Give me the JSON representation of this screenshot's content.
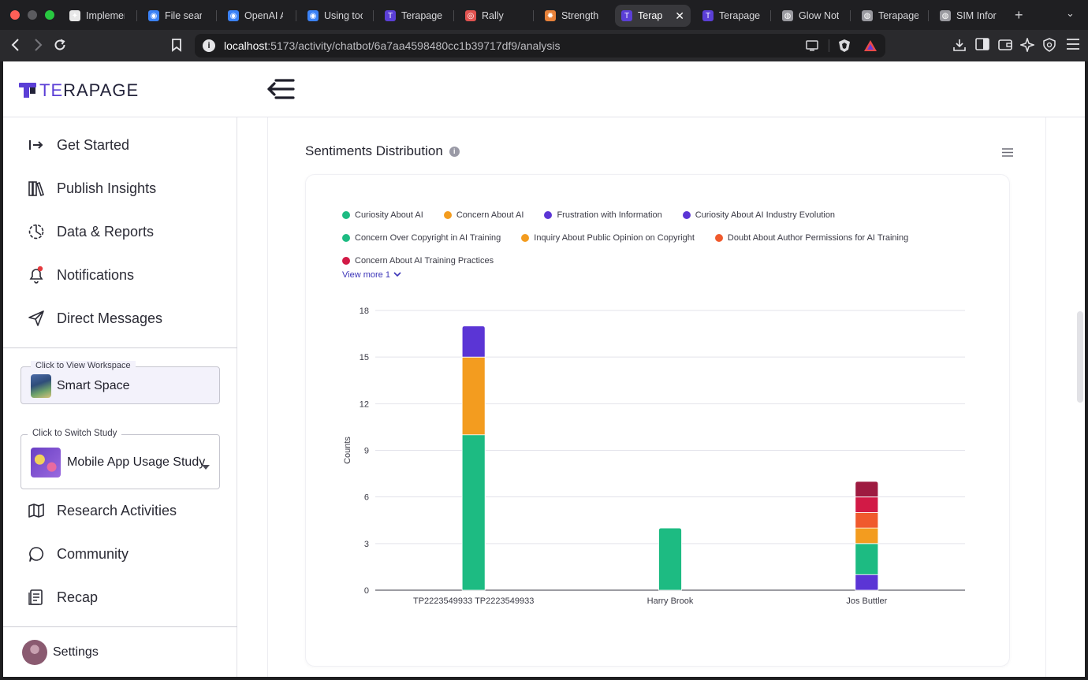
{
  "browser": {
    "tabs": [
      {
        "label": "Implemen",
        "left": 80,
        "width": 86,
        "fav_color": "#e8e8e8",
        "fav_glyph": "✦"
      },
      {
        "label": "File searc",
        "left": 180,
        "width": 84,
        "fav_color": "#3b82f6",
        "fav_glyph": "◉"
      },
      {
        "label": "OpenAI A",
        "left": 281,
        "width": 86,
        "fav_color": "#3b82f6",
        "fav_glyph": "◉"
      },
      {
        "label": "Using too",
        "left": 382,
        "width": 86,
        "fav_color": "#3b82f6",
        "fav_glyph": "◉"
      },
      {
        "label": "Terapage",
        "left": 480,
        "width": 90,
        "fav_color": "#5b3fd6",
        "fav_glyph": "T"
      },
      {
        "label": "Rally",
        "left": 582,
        "width": 88,
        "fav_color": "#e0524f",
        "fav_glyph": "◎"
      },
      {
        "label": "Strength",
        "left": 683,
        "width": 86,
        "fav_color": "#e8823a",
        "fav_glyph": "✹"
      },
      {
        "label": "Terap",
        "left": 780,
        "width": 96,
        "fav_color": "#5b3fd6",
        "fav_glyph": "T",
        "active": true
      },
      {
        "label": "Terapage",
        "left": 883,
        "width": 90,
        "fav_color": "#5b3fd6",
        "fav_glyph": "T"
      },
      {
        "label": "Glow Not",
        "left": 984,
        "width": 88,
        "fav_color": "#9a9aa0",
        "fav_glyph": "◍"
      },
      {
        "label": "Terapage",
        "left": 1085,
        "width": 88,
        "fav_color": "#9a9aa0",
        "fav_glyph": "◍"
      },
      {
        "label": "SIM Inforr",
        "left": 1184,
        "width": 88,
        "fav_color": "#9a9aa0",
        "fav_glyph": "◍"
      }
    ],
    "url_host": "localhost",
    "url_path": ":5173/activity/chatbot/6a7aa4598480cc1b39717df9/analysis"
  },
  "app": {
    "logo_te": "TE",
    "logo_rest": "RAPAGE"
  },
  "sidebar": {
    "items_top": [
      {
        "label": "Get Started",
        "name": "sidebar-item-get-started",
        "icon": "login-arrow-icon"
      },
      {
        "label": "Publish Insights",
        "name": "sidebar-item-publish-insights",
        "icon": "books-icon"
      },
      {
        "label": "Data & Reports",
        "name": "sidebar-item-data-reports",
        "icon": "chart-pie-icon"
      },
      {
        "label": "Notifications",
        "name": "sidebar-item-notifications",
        "icon": "bell-icon"
      },
      {
        "label": "Direct Messages",
        "name": "sidebar-item-direct-messages",
        "icon": "send-icon"
      }
    ],
    "workspace_caption": "Click to View Workspace",
    "workspace_name": "Smart Space",
    "study_caption": "Click to Switch Study",
    "study_name": "Mobile App Usage Study",
    "items_bottom": [
      {
        "label": "Research Activities",
        "name": "sidebar-item-research-activities",
        "icon": "map-icon"
      },
      {
        "label": "Community",
        "name": "sidebar-item-community",
        "icon": "chat-bubble-icon"
      },
      {
        "label": "Recap",
        "name": "sidebar-item-recap",
        "icon": "recap-icon"
      }
    ],
    "settings_label": "Settings"
  },
  "main": {
    "card_title": "Sentiments Distribution",
    "info_glyph": "i",
    "view_more": "View more 1"
  },
  "legend": [
    [
      {
        "label": "Curiosity About AI",
        "color": "#1dbb82"
      },
      {
        "label": "Concern About AI",
        "color": "#f39c1f"
      },
      {
        "label": "Frustration with Information",
        "color": "#5b35d5"
      },
      {
        "label": "Curiosity About AI Industry Evolution",
        "color": "#5b35d5"
      }
    ],
    [
      {
        "label": "Concern Over Copyright in AI Training",
        "color": "#1dbb82"
      },
      {
        "label": "Inquiry About Public Opinion on Copyright",
        "color": "#f39c1f"
      },
      {
        "label": "Doubt About Author Permissions for AI Training",
        "color": "#f05a2d"
      }
    ],
    [
      {
        "label": "Concern About AI Training Practices",
        "color": "#d21a46"
      }
    ]
  ],
  "chart_data": {
    "type": "bar",
    "stacked": true,
    "ylabel": "Counts",
    "ylim": [
      0,
      18
    ],
    "yticks": [
      0,
      3,
      6,
      9,
      12,
      15,
      18
    ],
    "grid": true,
    "categories": [
      "TP2223549933 TP2223549933",
      "Harry Brook",
      "Jos Buttler"
    ],
    "stacks": [
      [
        {
          "value": 10,
          "color": "#1dbb82"
        },
        {
          "value": 5,
          "color": "#f39c1f"
        },
        {
          "value": 2,
          "color": "#5b35d5"
        }
      ],
      [
        {
          "value": 4,
          "color": "#1dbb82"
        }
      ],
      [
        {
          "value": 1,
          "color": "#5b35d5"
        },
        {
          "value": 2,
          "color": "#1dbb82"
        },
        {
          "value": 1,
          "color": "#f39c1f"
        },
        {
          "value": 1,
          "color": "#f05a2d"
        },
        {
          "value": 1,
          "color": "#d21a46"
        },
        {
          "value": 1,
          "color": "#9e1a40"
        }
      ]
    ]
  }
}
